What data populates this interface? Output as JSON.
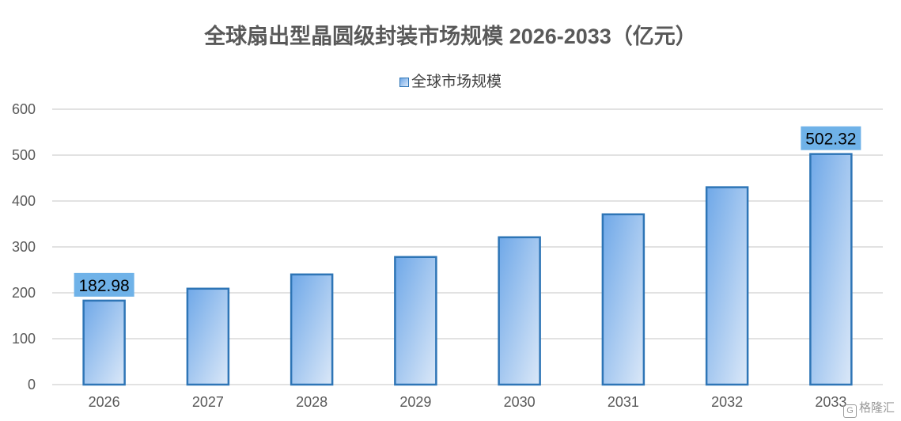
{
  "chart_data": {
    "type": "bar",
    "title": "全球扇出型晶圆级封装市场规模 2026-2033（亿元）",
    "categories": [
      "2026",
      "2027",
      "2028",
      "2029",
      "2030",
      "2031",
      "2032",
      "2033"
    ],
    "series": [
      {
        "name": "全球市场规模",
        "values": [
          182.98,
          209,
          240,
          278,
          321,
          371,
          430,
          502.32
        ]
      }
    ],
    "data_labels": {
      "2026": "182.98",
      "2033": "502.32"
    },
    "ylim": [
      0,
      600
    ],
    "yticks": [
      0,
      100,
      200,
      300,
      400,
      500,
      600
    ],
    "grid": true,
    "legend_position": "top",
    "colors": {
      "bar_gradient_start": "#6fa8e8",
      "bar_gradient_end": "#dbe8f8",
      "bar_border": "#2e75b6",
      "label_box": "#6fb2e8",
      "gridline": "#d9d9d9",
      "title": "#595959"
    }
  },
  "watermark": {
    "logo": "G",
    "text": "格隆汇"
  }
}
